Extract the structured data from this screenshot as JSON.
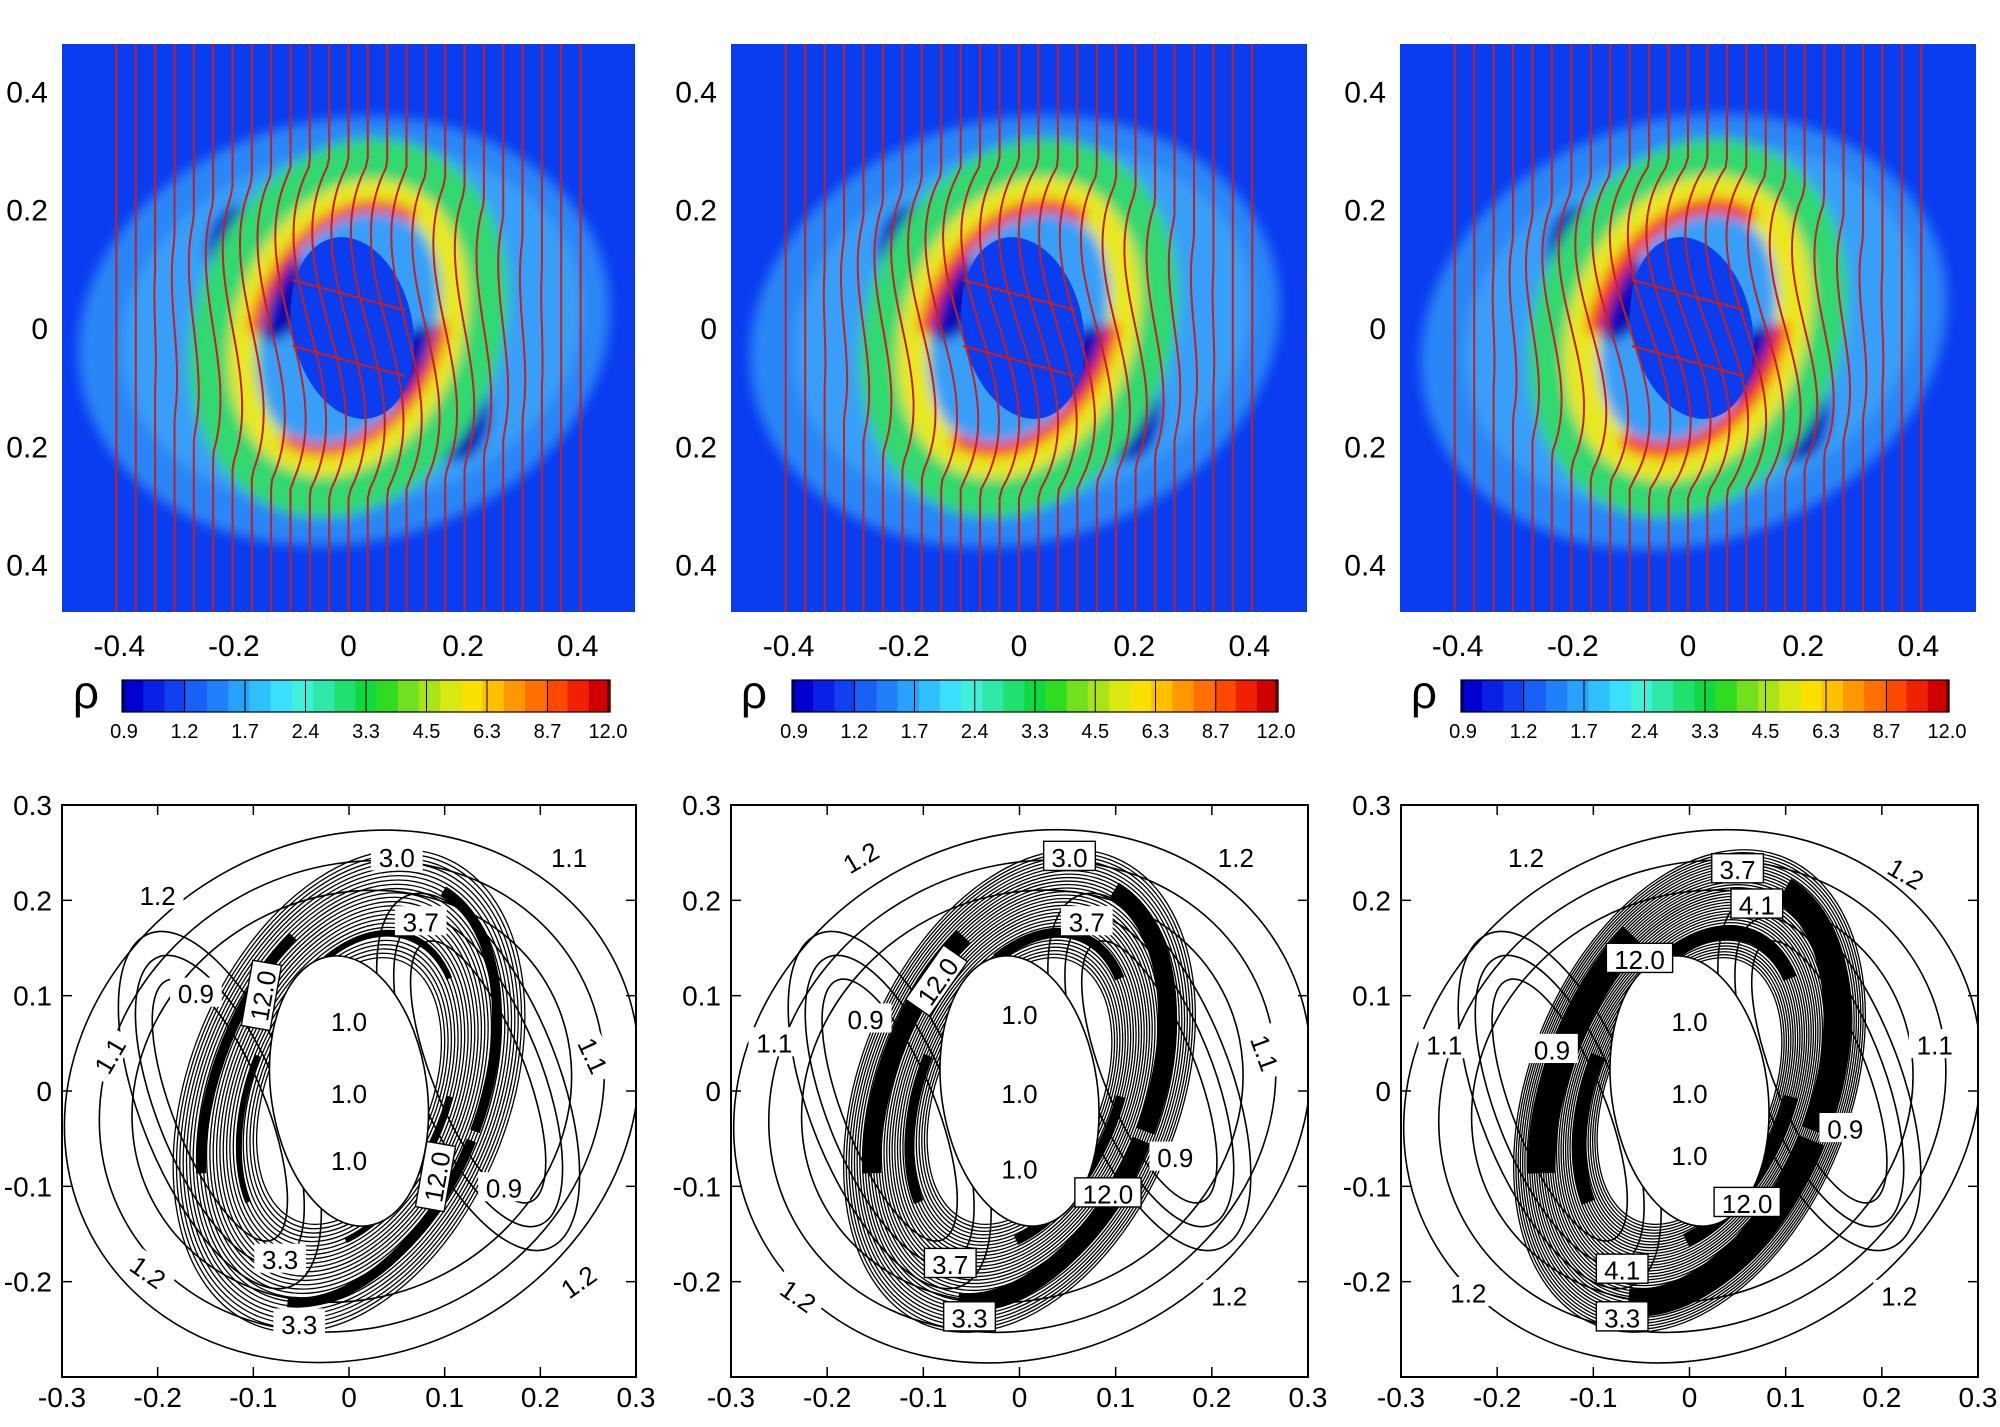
{
  "figure": {
    "colorbar_symbol": "ρ",
    "colorbar_ticks": [
      "0.9",
      "1.2",
      "1.7",
      "2.4",
      "3.3",
      "4.5",
      "6.3",
      "8.7",
      "12.0"
    ],
    "colorbar_colors": [
      "#0000d2",
      "#0a20e6",
      "#1040f0",
      "#1860f6",
      "#2080fa",
      "#28a0fc",
      "#30c0fd",
      "#3ae0fb",
      "#40f0d8",
      "#30e8a8",
      "#20e070",
      "#10d840",
      "#30dc20",
      "#70e020",
      "#a8e418",
      "#d8e810",
      "#f8e000",
      "#ffc000",
      "#ff9800",
      "#ff7000",
      "#ff4800",
      "#f02000",
      "#d00000"
    ],
    "background_color": "#0a3cf0",
    "field_line_color": "#c81e1e"
  },
  "chart_data": [
    {
      "type": "heatmap",
      "variable": "ρ",
      "panel": "top-left",
      "x_ticks": [
        "-0.4",
        "-0.2",
        "0",
        "0.2",
        "0.4"
      ],
      "y_ticks": [
        "0.4",
        "0.2",
        "0",
        "0.2",
        "0.4"
      ],
      "xlim": [
        -0.5,
        0.5
      ],
      "ylim": [
        -0.48,
        0.48
      ],
      "colorbar_range": [
        0.9,
        12.0
      ],
      "overlay": "magnetic field lines"
    },
    {
      "type": "heatmap",
      "variable": "ρ",
      "panel": "top-middle",
      "x_ticks": [
        "-0.4",
        "-0.2",
        "0",
        "0.2",
        "0.4"
      ],
      "y_ticks": [
        "0.4",
        "0.2",
        "0",
        "0.2",
        "0.4"
      ],
      "xlim": [
        -0.5,
        0.5
      ],
      "ylim": [
        -0.48,
        0.48
      ],
      "colorbar_range": [
        0.9,
        12.0
      ],
      "overlay": "magnetic field lines"
    },
    {
      "type": "heatmap",
      "variable": "ρ",
      "panel": "top-right",
      "x_ticks": [
        "-0.4",
        "-0.2",
        "0",
        "0.2",
        "0.4"
      ],
      "y_ticks": [
        "0.4",
        "0.2",
        "0",
        "0.2",
        "0.4"
      ],
      "xlim": [
        -0.5,
        0.5
      ],
      "ylim": [
        -0.48,
        0.48
      ],
      "colorbar_range": [
        0.9,
        12.0
      ],
      "overlay": "magnetic field lines"
    },
    {
      "type": "contour",
      "variable": "ρ",
      "panel": "bottom-left",
      "x_ticks": [
        "-0.3",
        "-0.2",
        "-0.1",
        "0",
        "0.1",
        "0.2",
        "0.3"
      ],
      "y_ticks": [
        "0.3",
        "0.2",
        "0.1",
        "0",
        "-0.1",
        "-0.2"
      ],
      "xlim": [
        -0.3,
        0.3
      ],
      "ylim": [
        -0.3,
        0.3
      ],
      "labels": [
        {
          "text": "1.2",
          "x": -0.2,
          "y": 0.205
        },
        {
          "text": "3.0",
          "x": 0.05,
          "y": 0.245
        },
        {
          "text": "1.1",
          "x": 0.23,
          "y": 0.245
        },
        {
          "text": "3.7",
          "x": 0.075,
          "y": 0.177
        },
        {
          "text": "12.0",
          "x": -0.09,
          "y": 0.1,
          "box": true,
          "rot": -80
        },
        {
          "text": "0.9",
          "x": -0.16,
          "y": 0.102
        },
        {
          "text": "1.0",
          "x": 0,
          "y": 0.073
        },
        {
          "text": "1.1",
          "x": -0.25,
          "y": 0.037,
          "rot": -60
        },
        {
          "text": "1.1",
          "x": 0.255,
          "y": 0.037,
          "rot": 65
        },
        {
          "text": "1.0",
          "x": 0,
          "y": -0.003
        },
        {
          "text": "1.0",
          "x": 0,
          "y": -0.073
        },
        {
          "text": "12.0",
          "x": 0.092,
          "y": -0.09,
          "box": true,
          "rot": -80
        },
        {
          "text": "0.9",
          "x": 0.162,
          "y": -0.102
        },
        {
          "text": "3.3",
          "x": -0.072,
          "y": -0.177
        },
        {
          "text": "1.2",
          "x": -0.21,
          "y": -0.19,
          "rot": 35
        },
        {
          "text": "1.2",
          "x": 0.24,
          "y": -0.2,
          "rot": -35
        },
        {
          "text": "3.3",
          "x": -0.052,
          "y": -0.245
        }
      ]
    },
    {
      "type": "contour",
      "variable": "ρ",
      "panel": "bottom-middle",
      "x_ticks": [
        "-0.3",
        "-0.2",
        "-0.1",
        "0",
        "0.1",
        "0.2",
        "0.3"
      ],
      "y_ticks": [
        "0.3",
        "0.2",
        "0.1",
        "0",
        "-0.1",
        "-0.2"
      ],
      "xlim": [
        -0.3,
        0.3
      ],
      "ylim": [
        -0.3,
        0.3
      ],
      "labels": [
        {
          "text": "1.2",
          "x": -0.165,
          "y": 0.245,
          "rot": -30
        },
        {
          "text": "3.0",
          "x": 0.052,
          "y": 0.245,
          "box": true
        },
        {
          "text": "1.2",
          "x": 0.225,
          "y": 0.245
        },
        {
          "text": "3.7",
          "x": 0.07,
          "y": 0.177
        },
        {
          "text": "12.0",
          "x": -0.085,
          "y": 0.115,
          "box": true,
          "rot": -55
        },
        {
          "text": "0.9",
          "x": -0.16,
          "y": 0.075
        },
        {
          "text": "1.0",
          "x": 0,
          "y": 0.08
        },
        {
          "text": "1.1",
          "x": -0.255,
          "y": 0.05
        },
        {
          "text": "1.1",
          "x": 0.255,
          "y": 0.04,
          "rot": 70
        },
        {
          "text": "1.0",
          "x": 0,
          "y": -0.003
        },
        {
          "text": "0.9",
          "x": 0.162,
          "y": -0.07
        },
        {
          "text": "1.0",
          "x": 0,
          "y": -0.082
        },
        {
          "text": "12.0",
          "x": 0.092,
          "y": -0.108,
          "box": true
        },
        {
          "text": "3.7",
          "x": -0.072,
          "y": -0.182,
          "box": true
        },
        {
          "text": "1.2",
          "x": -0.23,
          "y": -0.215,
          "rot": 35
        },
        {
          "text": "1.2",
          "x": 0.218,
          "y": -0.215
        },
        {
          "text": "3.3",
          "x": -0.052,
          "y": -0.238,
          "box": true
        }
      ]
    },
    {
      "type": "contour",
      "variable": "ρ",
      "panel": "bottom-right",
      "x_ticks": [
        "-0.3",
        "-0.2",
        "-0.1",
        "0",
        "0.1",
        "0.2",
        "0.3"
      ],
      "y_ticks": [
        "0.3",
        "0.2",
        "0.1",
        "0",
        "-0.1",
        "-0.2"
      ],
      "xlim": [
        -0.3,
        0.3
      ],
      "ylim": [
        -0.3,
        0.3
      ],
      "labels": [
        {
          "text": "1.2",
          "x": -0.17,
          "y": 0.245
        },
        {
          "text": "3.7",
          "x": 0.05,
          "y": 0.232,
          "box": true
        },
        {
          "text": "1.2",
          "x": 0.225,
          "y": 0.228,
          "rot": 30
        },
        {
          "text": "4.1",
          "x": 0.07,
          "y": 0.195,
          "box": true
        },
        {
          "text": "12.0",
          "x": -0.052,
          "y": 0.138,
          "box": true
        },
        {
          "text": "1.0",
          "x": 0,
          "y": 0.073
        },
        {
          "text": "1.1",
          "x": -0.255,
          "y": 0.048
        },
        {
          "text": "0.9",
          "x": -0.143,
          "y": 0.043
        },
        {
          "text": "1.1",
          "x": 0.255,
          "y": 0.048
        },
        {
          "text": "1.0",
          "x": 0,
          "y": -0.003
        },
        {
          "text": "0.9",
          "x": 0.162,
          "y": -0.04
        },
        {
          "text": "1.0",
          "x": 0,
          "y": -0.068
        },
        {
          "text": "12.0",
          "x": 0.06,
          "y": -0.118,
          "box": true
        },
        {
          "text": "4.1",
          "x": -0.07,
          "y": -0.188,
          "box": true
        },
        {
          "text": "1.2",
          "x": -0.23,
          "y": -0.212
        },
        {
          "text": "1.2",
          "x": 0.218,
          "y": -0.215
        },
        {
          "text": "3.3",
          "x": -0.07,
          "y": -0.238,
          "box": true
        }
      ]
    }
  ]
}
